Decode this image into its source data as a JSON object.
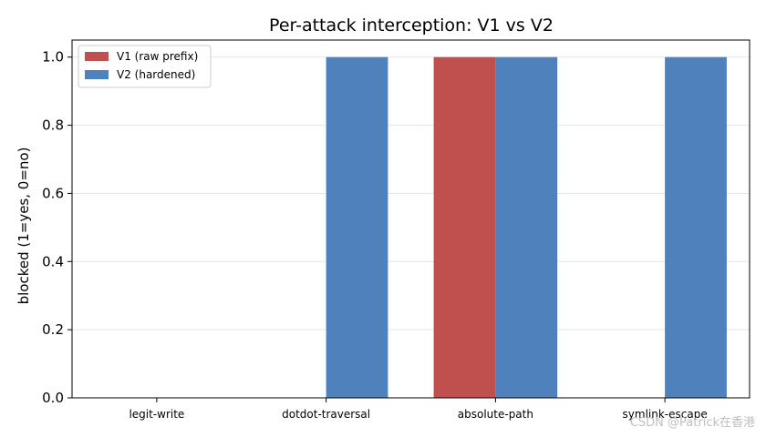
{
  "chart_data": {
    "type": "bar",
    "title": "Per-attack interception: V1 vs V2",
    "xlabel": "",
    "ylabel": "blocked (1=yes, 0=no)",
    "categories": [
      "legit-write",
      "dotdot-traversal",
      "absolute-path",
      "symlink-escape"
    ],
    "series": [
      {
        "name": "V1 (raw prefix)",
        "color": "#c0504d",
        "values": [
          0,
          0,
          1,
          0
        ]
      },
      {
        "name": "V2 (hardened)",
        "color": "#4f81bd",
        "values": [
          0,
          1,
          1,
          1
        ]
      }
    ],
    "ylim": [
      0,
      1.05
    ],
    "yticks": [
      "0.0",
      "0.2",
      "0.4",
      "0.6",
      "0.8",
      "1.0"
    ],
    "grid": "horizontal",
    "legend": "top-left"
  },
  "watermark": "CSDN @Patrick在香港"
}
